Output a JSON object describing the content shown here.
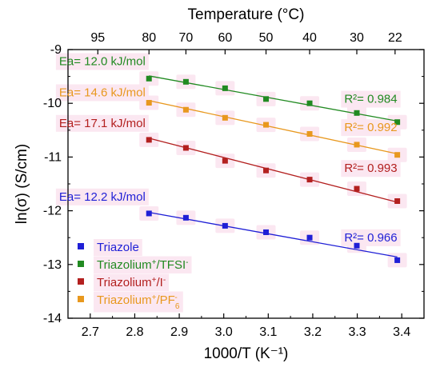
{
  "chart_data": {
    "type": "scatter",
    "xlabel": "1000/T (K⁻¹)",
    "ylabel": "ln(σ) (S/cm)",
    "top_xlabel": "Temperature (°C)",
    "xlim": [
      2.65,
      3.45
    ],
    "ylim": [
      -14,
      -9
    ],
    "xticks": [
      2.7,
      2.8,
      2.9,
      3.0,
      3.1,
      3.2,
      3.3,
      3.4
    ],
    "xtick_labels": [
      "2.7",
      "2.8",
      "2.9",
      "3.0",
      "3.1",
      "3.2",
      "3.3",
      "3.4"
    ],
    "yticks": [
      -14,
      -13,
      -12,
      -11,
      -10,
      -9
    ],
    "ytick_labels": [
      "-14",
      "-13",
      "-12",
      "-11",
      "-10",
      "-9"
    ],
    "top_ticks": [
      {
        "x": 2.717,
        "label": "95"
      },
      {
        "x": 2.832,
        "label": "80"
      },
      {
        "x": 2.915,
        "label": "70"
      },
      {
        "x": 3.003,
        "label": "60"
      },
      {
        "x": 3.095,
        "label": "50"
      },
      {
        "x": 3.193,
        "label": "40"
      },
      {
        "x": 3.299,
        "label": "30"
      },
      {
        "x": 3.385,
        "label": "22"
      }
    ],
    "legend_position": "bottom-left",
    "series": [
      {
        "name": "Triazole",
        "legend_main": "Triazole",
        "legend_sup": "",
        "legend_rest": "",
        "legend_sub": "",
        "color": "#1f1fd6",
        "x": [
          2.832,
          2.915,
          3.003,
          3.095,
          3.193,
          3.299,
          3.39
        ],
        "y": [
          -12.05,
          -12.13,
          -12.28,
          -12.4,
          -12.5,
          -12.65,
          -12.92
        ],
        "fit": {
          "x": [
            2.832,
            3.39
          ],
          "y": [
            -12.03,
            -12.86
          ]
        },
        "ea": "Ea= 12.2 kJ/mol",
        "r2": "R²= 0.966",
        "ea_pos": [
          2.63,
          -11.81
        ],
        "r2_pos": [
          3.39,
          -12.57
        ]
      },
      {
        "name": "Triazolium+/TFSI-",
        "legend_main": "Triazolium",
        "legend_sup": "+",
        "legend_rest": "/TFSI",
        "legend_sup2": "-",
        "legend_sub": "",
        "color": "#218a21",
        "x": [
          2.832,
          2.915,
          3.003,
          3.095,
          3.193,
          3.299,
          3.39
        ],
        "y": [
          -9.54,
          -9.6,
          -9.72,
          -9.92,
          -10.0,
          -10.18,
          -10.35
        ],
        "fit": {
          "x": [
            2.832,
            3.39
          ],
          "y": [
            -9.49,
            -10.33
          ]
        },
        "ea": "Ea= 12.0 kJ/mol",
        "r2": "R²= 0.984",
        "ea_pos": [
          2.63,
          -9.29
        ],
        "r2_pos": [
          3.39,
          -9.99
        ]
      },
      {
        "name": "Triazolium+/I-",
        "legend_main": "Triazolium",
        "legend_sup": "+",
        "legend_rest": "/I",
        "legend_sup2": "-",
        "legend_sub": "",
        "color": "#b3201f",
        "x": [
          2.832,
          2.915,
          3.003,
          3.095,
          3.193,
          3.299,
          3.39
        ],
        "y": [
          -10.68,
          -10.83,
          -11.07,
          -11.25,
          -11.42,
          -11.59,
          -11.82
        ],
        "fit": {
          "x": [
            2.832,
            3.39
          ],
          "y": [
            -10.65,
            -11.84
          ]
        },
        "ea": "Ea= 17.1 kJ/mol",
        "r2": "R²= 0.993",
        "ea_pos": [
          2.63,
          -10.44
        ],
        "r2_pos": [
          3.39,
          -11.28
        ]
      },
      {
        "name": "Triazolium+/PF6-",
        "legend_main": "Triazolium",
        "legend_sup": "+",
        "legend_rest": "/PF",
        "legend_sub": "6",
        "legend_sup2": "-",
        "color": "#e8981e",
        "x": [
          2.832,
          2.915,
          3.003,
          3.095,
          3.193,
          3.299,
          3.39
        ],
        "y": [
          -9.99,
          -10.12,
          -10.27,
          -10.4,
          -10.57,
          -10.77,
          -10.96
        ],
        "fit": {
          "x": [
            2.832,
            3.39
          ],
          "y": [
            -9.95,
            -10.94
          ]
        },
        "ea": "Ea= 14.6 kJ/mol",
        "r2": "R²= 0.992",
        "ea_pos": [
          2.63,
          -9.87
        ],
        "r2_pos": [
          3.39,
          -10.52
        ]
      }
    ],
    "legend_order": [
      0,
      1,
      2,
      3
    ]
  }
}
